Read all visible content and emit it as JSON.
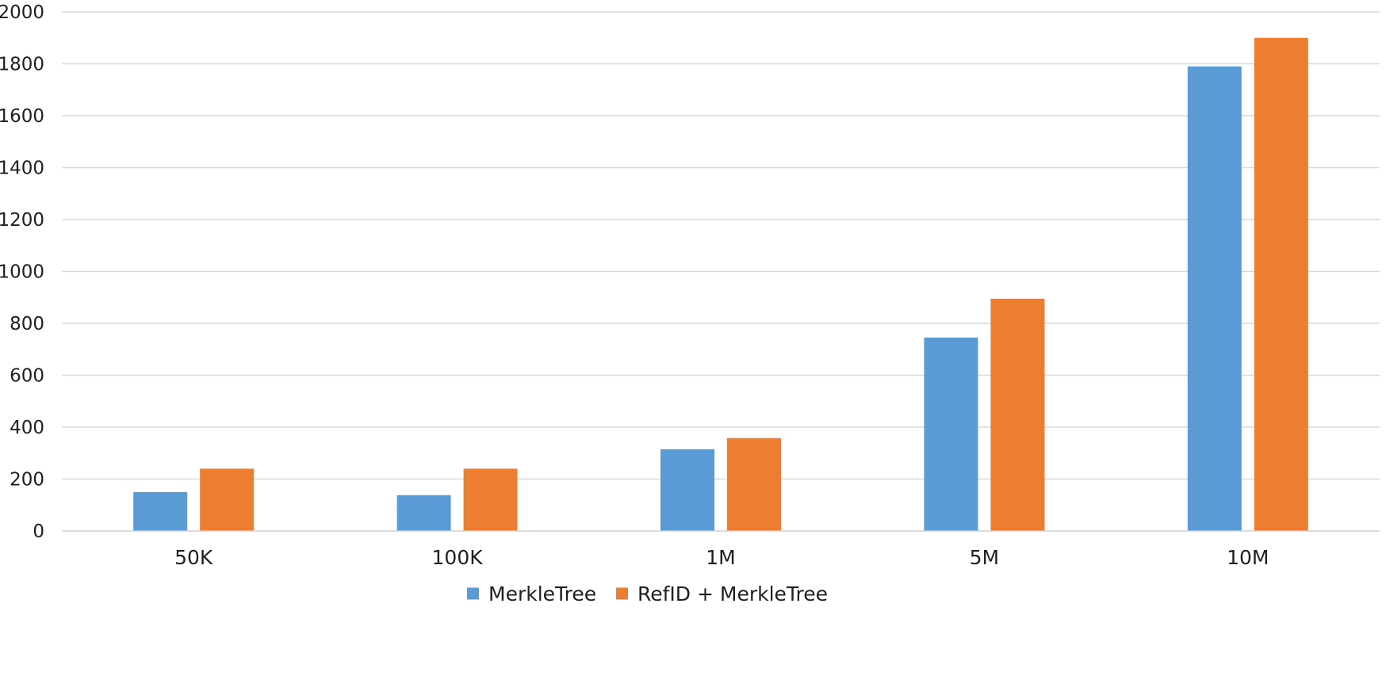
{
  "chart_data": {
    "type": "bar",
    "title": "",
    "xlabel": "",
    "ylabel": "",
    "categories": [
      "50K",
      "100K",
      "1M",
      "5M",
      "10M"
    ],
    "series": [
      {
        "name": "MerkleTree",
        "color": "#5b9bd5",
        "values": [
          150,
          138,
          315,
          745,
          1790
        ]
      },
      {
        "name": "RefID + MerkleTree",
        "color": "#ed7d31",
        "values": [
          240,
          240,
          358,
          895,
          1900
        ]
      }
    ],
    "ylim": [
      0,
      2000
    ],
    "yticks": [
      0,
      200,
      400,
      600,
      800,
      1000,
      1200,
      1400,
      1600,
      1800,
      2000
    ],
    "grid": true,
    "legend": "bottom-center"
  }
}
